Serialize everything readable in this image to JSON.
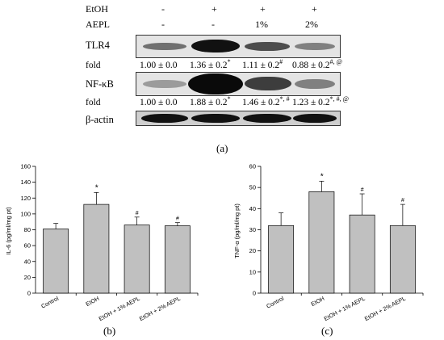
{
  "blot": {
    "conditions": [
      {
        "label": "EtOH",
        "values": [
          "-",
          "+",
          "+",
          "+"
        ]
      },
      {
        "label": "AEPL",
        "values": [
          "-",
          "-",
          "1%",
          "2%"
        ]
      }
    ],
    "rows": [
      {
        "label": "TLR4",
        "fold_label": "fold",
        "folds": [
          {
            "text": "1.00 ± 0.0",
            "sup": ""
          },
          {
            "text": "1.36 ± 0.2",
            "sup": "*"
          },
          {
            "text": "1.11 ± 0.2",
            "sup": "#"
          },
          {
            "text": "0.88 ± 0.2",
            "sup": "#, @"
          }
        ]
      },
      {
        "label": "NF-κB",
        "fold_label": "fold",
        "folds": [
          {
            "text": "1.00 ± 0.0",
            "sup": ""
          },
          {
            "text": "1.88 ± 0.2",
            "sup": "*"
          },
          {
            "text": "1.46 ± 0.2",
            "sup": "*, #"
          },
          {
            "text": "1.23 ± 0.2",
            "sup": "*, #, @"
          }
        ]
      },
      {
        "label": "β-actin"
      }
    ],
    "panel_label": "(a)"
  },
  "chart_data": [
    {
      "type": "bar",
      "ylabel": "IL-6 (pg/ml/mg pt)",
      "xlabel": "",
      "categories": [
        "Control",
        "EtOH",
        "EtOH + 1% AEPL",
        "EtOH + 2% AEPL"
      ],
      "values": [
        81,
        112,
        86,
        85
      ],
      "errors": [
        7,
        15,
        10,
        4
      ],
      "annotations": [
        "",
        "*",
        "#",
        "#"
      ],
      "ylim": [
        0,
        160
      ],
      "yticks": [
        0,
        20,
        40,
        60,
        80,
        100,
        120,
        140,
        160
      ],
      "bar_color": "#c0c0c0",
      "panel_label": "(b)"
    },
    {
      "type": "bar",
      "ylabel": "TNF-α (pg/ml/mg pt)",
      "xlabel": "",
      "categories": [
        "Control",
        "EtOH",
        "EtOH + 1% AEPL",
        "EtOH + 2% AEPL"
      ],
      "values": [
        32,
        48,
        37,
        32
      ],
      "errors": [
        6,
        5,
        10,
        10
      ],
      "annotations": [
        "",
        "*",
        "#",
        "#"
      ],
      "ylim": [
        0,
        60
      ],
      "yticks": [
        0,
        10,
        20,
        30,
        40,
        50,
        60
      ],
      "bar_color": "#c0c0c0",
      "panel_label": "(c)"
    }
  ]
}
